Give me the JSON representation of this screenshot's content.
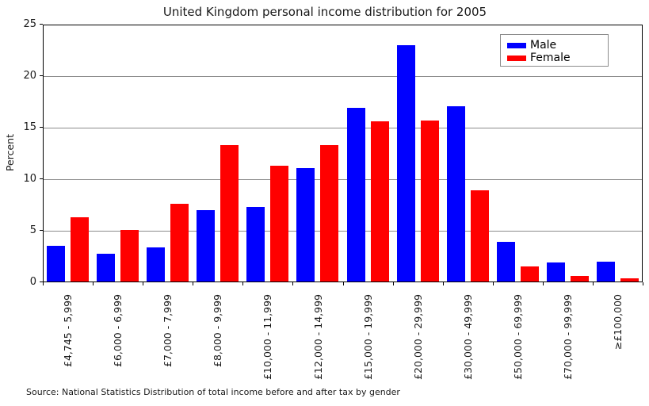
{
  "chart_data": {
    "type": "bar",
    "title": "United Kingdom personal income distribution for 2005",
    "xlabel": "",
    "ylabel": "Percent",
    "ylim": [
      0,
      25
    ],
    "yticks": [
      0,
      5,
      10,
      15,
      20,
      25
    ],
    "grid": true,
    "legend_position": "upper right",
    "categories": [
      "£4,745 - 5,999",
      "£6,000 - 6,999",
      "£7,000 - 7,999",
      "£8,000 - 9,999",
      "£10,000 - 11,999",
      "£12,000 - 14,999",
      "£15,000 - 19,999",
      "£20,000 - 29,999",
      "£30,000 - 49,999",
      "£50,000 - 69,999",
      "£70,000 - 99,999",
      "≥£100,000"
    ],
    "series": [
      {
        "name": "Male",
        "color": "#0000ff",
        "values": [
          3.5,
          2.8,
          3.4,
          7.0,
          7.3,
          11.1,
          16.9,
          23.0,
          17.1,
          3.9,
          1.9,
          2.0
        ]
      },
      {
        "name": "Female",
        "color": "#ff0000",
        "values": [
          6.3,
          5.1,
          7.6,
          13.3,
          11.3,
          13.3,
          15.6,
          15.7,
          8.9,
          1.5,
          0.6,
          0.4
        ]
      }
    ],
    "source_note": "Source: National Statistics Distribution of total income before and after tax by gender"
  }
}
